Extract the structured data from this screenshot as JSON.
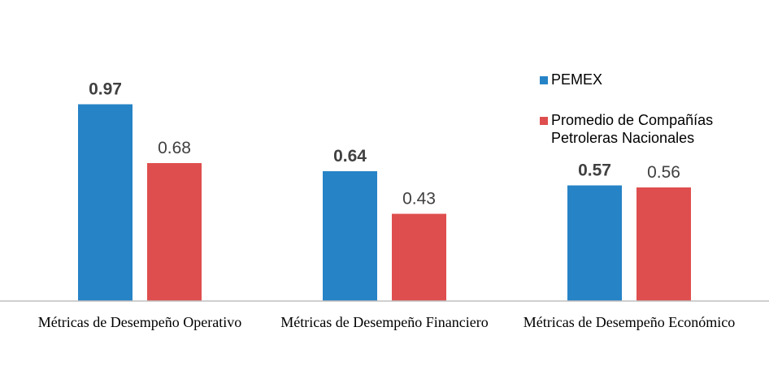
{
  "chart_data": {
    "type": "bar",
    "categories": [
      "Métricas de Desempeño Operativo",
      "Métricas de Desempeño Financiero",
      "Métricas de Desempeño Económico"
    ],
    "series": [
      {
        "name": "PEMEX",
        "values": [
          0.97,
          0.64,
          0.57
        ],
        "color": "#2683c6",
        "label_style": "bold"
      },
      {
        "name": "Promedio de Compañías Petroleras Nacionales",
        "legend_lines": [
          "Promedio de Compañías",
          "Petroleras Nacionales"
        ],
        "values": [
          0.68,
          0.43,
          0.56
        ],
        "color": "#df4e4e",
        "label_style": "normal"
      }
    ],
    "value_labels": [
      [
        "0.97",
        "0.64",
        "0.57"
      ],
      [
        "0.68",
        "0.43",
        "0.56"
      ]
    ],
    "ylim": [
      0,
      1
    ],
    "grid": false,
    "legend_position": "top-right",
    "title": "",
    "xlabel": "",
    "ylabel": ""
  }
}
